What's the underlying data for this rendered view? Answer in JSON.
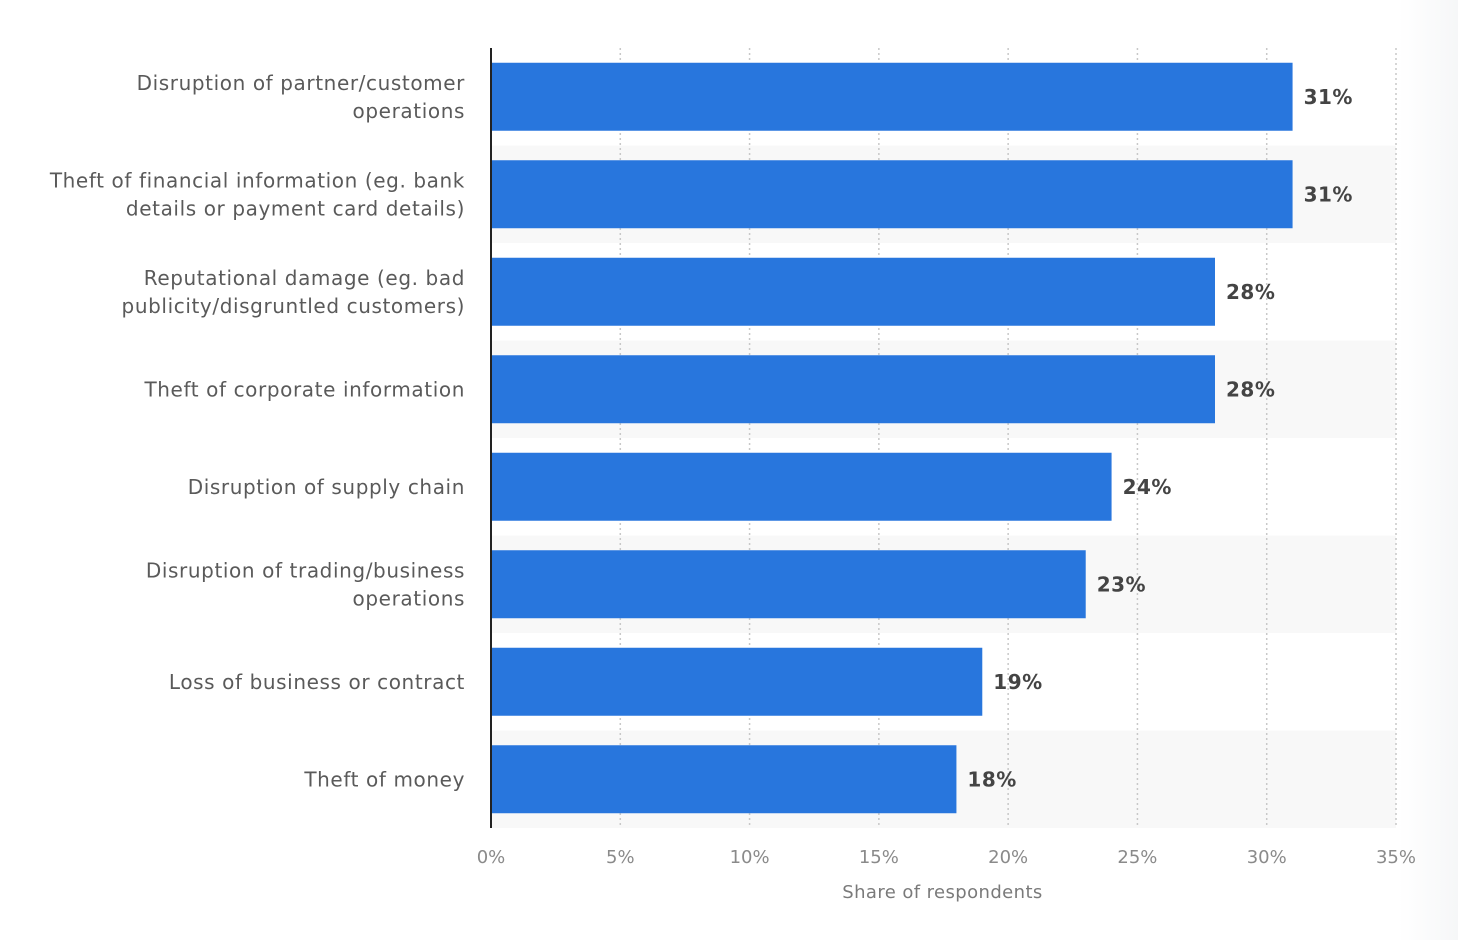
{
  "chart_data": {
    "type": "bar",
    "orientation": "horizontal",
    "title": "",
    "categories": [
      [
        "Disruption of partner/customer",
        "operations"
      ],
      [
        "Theft of financial information (eg. bank",
        "details or payment card details)"
      ],
      [
        "Reputational damage (eg. bad",
        "publicity/disgruntled customers)"
      ],
      [
        "Theft of corporate information"
      ],
      [
        "Disruption of supply chain"
      ],
      [
        "Disruption of trading/business",
        "operations"
      ],
      [
        "Loss of business or contract"
      ],
      [
        "Theft of money"
      ]
    ],
    "values": [
      31,
      31,
      28,
      28,
      24,
      23,
      19,
      18
    ],
    "value_labels": [
      "31%",
      "31%",
      "28%",
      "28%",
      "24%",
      "23%",
      "19%",
      "18%"
    ],
    "xlabel": "Share of respondents",
    "ylabel": "",
    "xlim": [
      0,
      35
    ],
    "ticks": [
      "0%",
      "5%",
      "10%",
      "15%",
      "20%",
      "25%",
      "30%",
      "35%"
    ],
    "tick_values": [
      0,
      5,
      10,
      15,
      20,
      25,
      30,
      35
    ],
    "grid": "vertical dotted",
    "bar_color": "#2876dd",
    "band_color": "#f8f8f8"
  }
}
